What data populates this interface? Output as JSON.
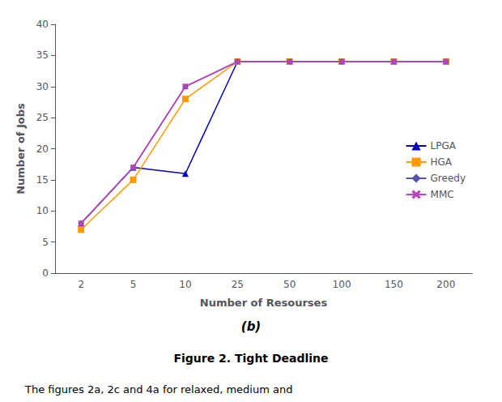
{
  "chart_data": {
    "type": "line",
    "x_label": "Number of Resourses",
    "y_label": "Number of Jobs",
    "categories": [
      "2",
      "5",
      "10",
      "25",
      "50",
      "100",
      "150",
      "200"
    ],
    "series": [
      {
        "name": "LPGA",
        "color": "#0000bb",
        "marker": "triangle",
        "values": [
          8,
          17,
          16,
          34,
          34,
          34,
          34,
          34
        ]
      },
      {
        "name": "HGA",
        "color": "#ff9900",
        "marker": "square",
        "values": [
          7,
          15,
          28,
          34,
          34,
          34,
          34,
          34
        ]
      },
      {
        "name": "Greedy",
        "color": "#5555aa",
        "marker": "diamond",
        "values": [
          8,
          17,
          30,
          34,
          34,
          34,
          34,
          34
        ]
      },
      {
        "name": "MMC",
        "color": "#bb44bb",
        "marker": "x",
        "values": [
          8,
          17,
          30,
          34,
          34,
          34,
          34,
          34
        ]
      }
    ],
    "ylim": [
      0,
      40
    ],
    "yticks": [
      0,
      5,
      10,
      15,
      20,
      25,
      30,
      35,
      40
    ],
    "grid": false,
    "legend": "lower right",
    "annotations": [
      "(b)",
      "Figure 2. Tight Deadline",
      "The figures 2a, 2c and 4a for relaxed, medium and"
    ]
  }
}
